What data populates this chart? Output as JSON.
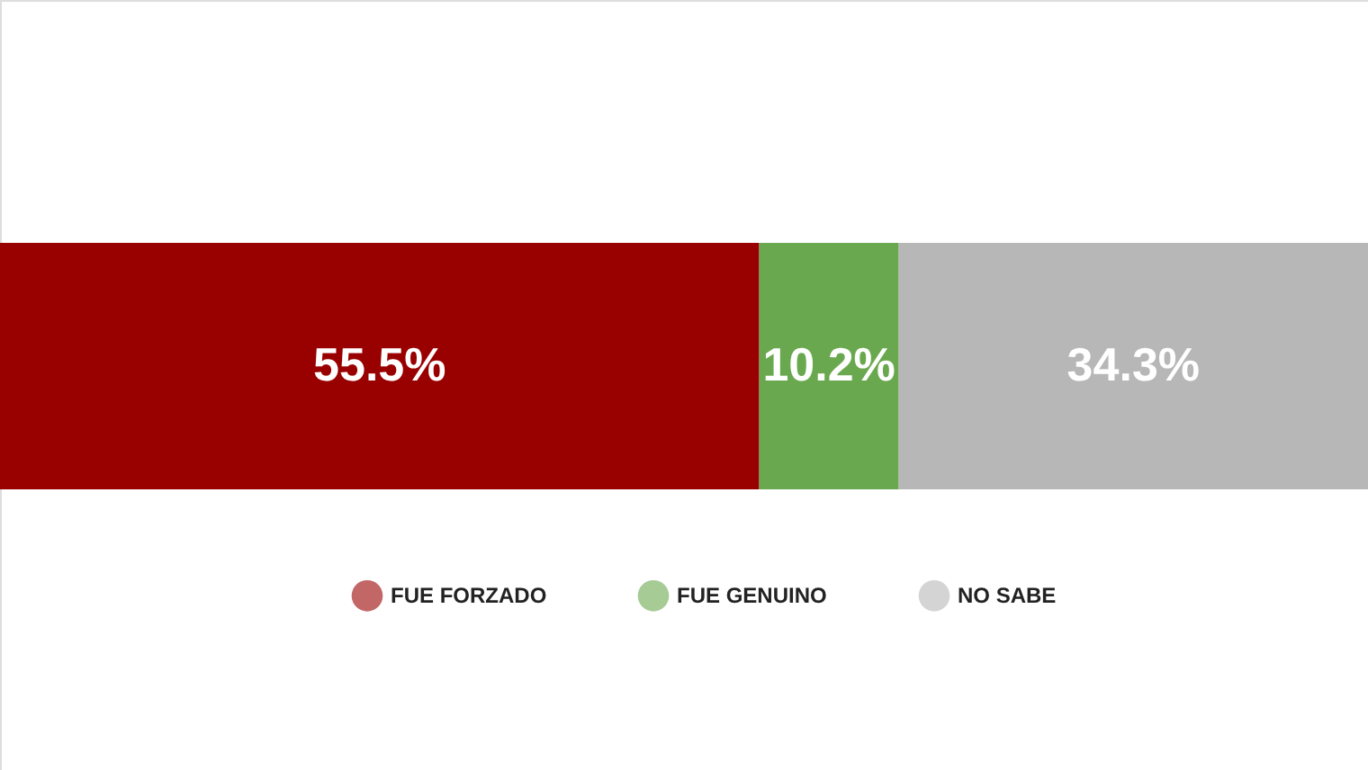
{
  "chart_data": {
    "type": "bar",
    "orientation": "horizontal",
    "stacked": true,
    "categories": [
      null
    ],
    "series": [
      {
        "name": "FUE FORZADO",
        "color": "#990000",
        "values": [
          55.5
        ],
        "value_labels": [
          "55.5%"
        ]
      },
      {
        "name": "FUE GENUINO",
        "color": "#6aa84f",
        "values": [
          10.2
        ],
        "value_labels": [
          "10.2%"
        ]
      },
      {
        "name": "NO SABE",
        "color": "#b7b7b7",
        "values": [
          34.3
        ],
        "value_labels": [
          "34.3%"
        ]
      }
    ],
    "legend": "bottom"
  }
}
